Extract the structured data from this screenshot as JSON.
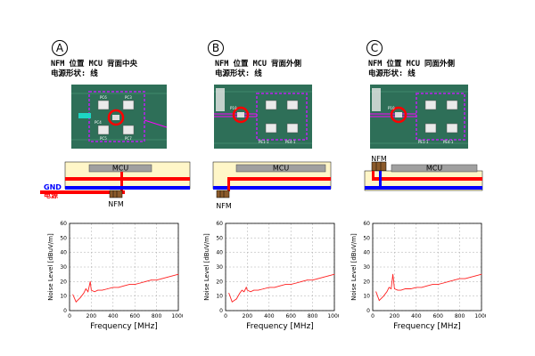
{
  "panels": [
    {
      "id": "A",
      "badge": "A",
      "line1": "NFM 位置 MCU 背面中央",
      "line2": "电源形状: 线",
      "mcu_label": "MCU",
      "nfm_label": "NFM",
      "gnd_label": "GND",
      "pwr_label": "电源",
      "photo_text": [
        "PC6",
        "PC3",
        "PC4",
        "PC5",
        "PC7"
      ]
    },
    {
      "id": "B",
      "badge": "B",
      "line1": "NFM 位置 MCU 背面外側",
      "line2": "电源形状: 线",
      "mcu_label": "MCU",
      "nfm_label": "NFM",
      "photo_text": [
        "P10",
        "PE1-1",
        "PE4-1"
      ]
    },
    {
      "id": "C",
      "badge": "C",
      "line1": "NFM 位置 MCU 同面外側",
      "line2": "电源形状: 线",
      "mcu_label": "MCU",
      "nfm_label": "NFM",
      "photo_text": [
        "P10",
        "PE1-1",
        "PE4-1"
      ]
    }
  ],
  "colors": {
    "power": "#ff0000",
    "gnd": "#0000ff",
    "mcu": "#a0a0a0",
    "board": "#fff6c8",
    "trace": "#ff2020"
  },
  "chart_data": [
    {
      "type": "line",
      "panel": "A",
      "xlabel": "Frequency [MHz]",
      "ylabel": "Noise Level [dBuV/m]",
      "xlim": [
        0,
        1000
      ],
      "ylim": [
        0,
        60
      ],
      "xticks": [
        0,
        200,
        400,
        600,
        800,
        1000
      ],
      "yticks": [
        0,
        10,
        20,
        30,
        40,
        50,
        60
      ],
      "grid": true,
      "series": [
        {
          "x": [
            30,
            60,
            100,
            130,
            150,
            170,
            190,
            200,
            230,
            260,
            300,
            350,
            400,
            450,
            500,
            550,
            600,
            650,
            700,
            750,
            800,
            850,
            900,
            950,
            1000
          ],
          "y": [
            11,
            6,
            9,
            12,
            15,
            13,
            20,
            14,
            13,
            14,
            14,
            15,
            16,
            16,
            17,
            18,
            18,
            19,
            20,
            21,
            21,
            22,
            23,
            24,
            25
          ]
        }
      ]
    },
    {
      "type": "line",
      "panel": "B",
      "xlabel": "Frequency [MHz]",
      "ylabel": "Noise Level [dBuV/m]",
      "xlim": [
        0,
        1000
      ],
      "ylim": [
        0,
        60
      ],
      "xticks": [
        0,
        200,
        400,
        600,
        800,
        1000
      ],
      "yticks": [
        0,
        10,
        20,
        30,
        40,
        50,
        60
      ],
      "grid": true,
      "series": [
        {
          "x": [
            30,
            60,
            100,
            130,
            150,
            170,
            190,
            200,
            230,
            260,
            300,
            350,
            400,
            450,
            500,
            550,
            600,
            650,
            700,
            750,
            800,
            850,
            900,
            950,
            1000
          ],
          "y": [
            12,
            6,
            8,
            12,
            14,
            13,
            16,
            14,
            13,
            14,
            14,
            15,
            16,
            16,
            17,
            18,
            18,
            19,
            20,
            21,
            21,
            22,
            23,
            24,
            25
          ]
        }
      ]
    },
    {
      "type": "line",
      "panel": "C",
      "xlabel": "Frequency [MHz]",
      "ylabel": "Noise Level [dBuV/m]",
      "xlim": [
        0,
        1000
      ],
      "ylim": [
        0,
        60
      ],
      "xticks": [
        0,
        200,
        400,
        600,
        800,
        1000
      ],
      "yticks": [
        0,
        10,
        20,
        30,
        40,
        50,
        60
      ],
      "grid": true,
      "series": [
        {
          "x": [
            30,
            60,
            100,
            130,
            150,
            170,
            185,
            200,
            230,
            260,
            300,
            350,
            400,
            450,
            500,
            550,
            600,
            650,
            700,
            750,
            800,
            850,
            900,
            950,
            1000
          ],
          "y": [
            13,
            7,
            10,
            13,
            16,
            15,
            25,
            15,
            14,
            14,
            15,
            15,
            16,
            16,
            17,
            18,
            18,
            19,
            20,
            21,
            22,
            22,
            23,
            24,
            25
          ]
        }
      ]
    }
  ]
}
